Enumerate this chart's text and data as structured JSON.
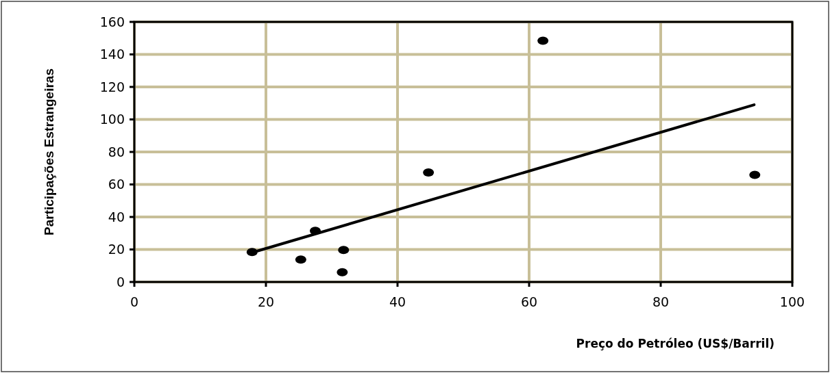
{
  "chart_data": {
    "type": "scatter",
    "xlabel": "Preço do Petróleo (US$/Barril)",
    "ylabel": "Participações Estrangeiras",
    "xlim": [
      0,
      100
    ],
    "xticks": [
      0,
      20,
      40,
      60,
      80,
      100
    ],
    "ylim": [
      0,
      160
    ],
    "yticks": [
      0,
      20,
      40,
      60,
      80,
      100,
      120,
      140,
      160
    ],
    "grid": true,
    "series": [
      {
        "color": "#000000",
        "marker": "circle",
        "x": [
          17.9,
          25.3,
          27.5,
          31.8,
          31.6,
          44.7,
          62.1,
          94.3
        ],
        "values": [
          18.4,
          13.8,
          31.5,
          19.7,
          6,
          67.4,
          148.4,
          65.9
        ]
      },
      {
        "type": "line",
        "color": "#000000",
        "x": [
          17.9,
          94.2
        ],
        "values": [
          18.1,
          109
        ]
      }
    ]
  }
}
